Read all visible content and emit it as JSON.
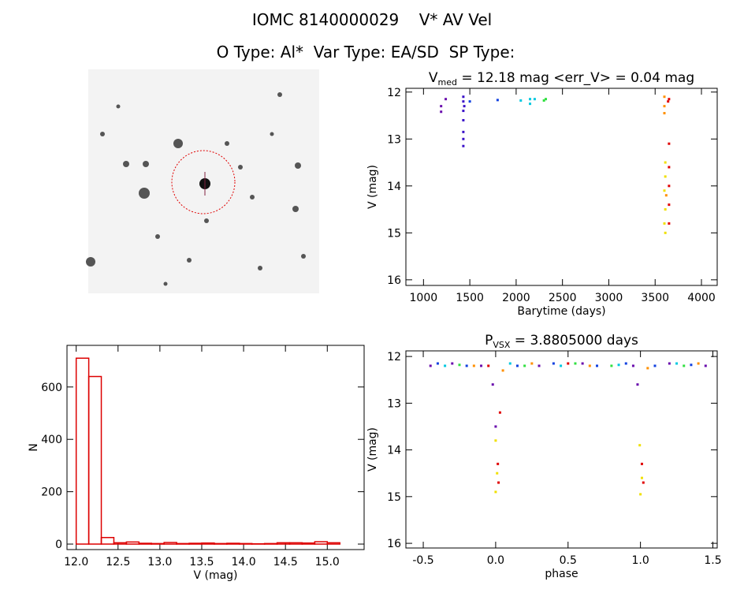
{
  "header": {
    "title": "IOMC 8140000029    V* AV Vel",
    "subtitle": "O Type: Al*  Var Type: EA/SD  SP Type:"
  },
  "chart_data": [
    {
      "type": "scatter",
      "title": "V",
      "title_sub": "med",
      "title_rest": " = 12.18 mag <err_V> = 0.04 mag",
      "x_label": "Barytime (days)",
      "y_label": "V (mag)",
      "xlim": [
        810,
        4170
      ],
      "xticks": [
        1000,
        1500,
        2000,
        2500,
        3000,
        3500,
        4000
      ],
      "ylim": [
        16.12,
        11.92
      ],
      "yticks": [
        12,
        13,
        14,
        15,
        16
      ],
      "series": [
        {
          "color": "#6a0dad",
          "x": [
            1190,
            1190,
            1240
          ],
          "values": [
            12.3,
            12.42,
            12.15
          ]
        },
        {
          "color": "#3a10c8",
          "x": [
            1430,
            1430,
            1430,
            1430,
            1430,
            1430,
            1430,
            1440
          ],
          "values": [
            12.1,
            12.2,
            12.4,
            12.6,
            12.85,
            13.0,
            13.15,
            12.3
          ]
        },
        {
          "color": "#1040e0",
          "x": [
            1500,
            1800
          ],
          "values": [
            12.2,
            12.17
          ]
        },
        {
          "color": "#00c8e0",
          "x": [
            2050,
            2150,
            2150,
            2200
          ],
          "values": [
            12.18,
            12.15,
            12.25,
            12.15
          ]
        },
        {
          "color": "#30e040",
          "x": [
            2300,
            2320
          ],
          "values": [
            12.18,
            12.15
          ]
        },
        {
          "color": "#ff9000",
          "x": [
            3600,
            3600,
            3600,
            3620
          ],
          "values": [
            12.1,
            12.3,
            12.45,
            14.2
          ]
        },
        {
          "color": "#f0e000",
          "x": [
            3610,
            3610,
            3600,
            3610,
            3600,
            3610
          ],
          "values": [
            13.5,
            13.8,
            14.1,
            14.5,
            14.8,
            15.0
          ]
        },
        {
          "color": "#e00000",
          "x": [
            3650,
            3650,
            3650,
            3650,
            3650,
            3650,
            3640
          ],
          "values": [
            12.15,
            13.1,
            13.6,
            14.0,
            14.4,
            14.8,
            12.2
          ]
        }
      ]
    },
    {
      "type": "histogram",
      "x_label": "V (mag)",
      "y_label": "N",
      "color": "#dd0000",
      "bins": [
        12.0,
        12.15,
        12.3,
        12.45,
        12.6,
        12.75,
        12.9,
        13.05,
        13.2,
        13.35,
        13.5,
        13.65,
        13.8,
        13.95,
        14.1,
        14.25,
        14.4,
        14.55,
        14.7,
        14.85,
        15.0,
        15.15
      ],
      "values": [
        710,
        640,
        25,
        5,
        8,
        3,
        2,
        6,
        2,
        3,
        4,
        2,
        3,
        2,
        1,
        2,
        5,
        5,
        4,
        9,
        5
      ],
      "xlim": [
        11.89,
        15.44
      ],
      "xticks": [
        {
          "value": 12,
          "label": "12.0"
        },
        12.5,
        {
          "value": 13,
          "label": "13.0"
        },
        13.5,
        {
          "value": 14,
          "label": "14.0"
        },
        14.5,
        {
          "value": 15,
          "label": "15.0"
        }
      ],
      "ylim": [
        -21,
        759
      ],
      "yticks": [
        0,
        200,
        400,
        600
      ]
    },
    {
      "type": "scatter",
      "title": "P",
      "title_sub": "VSX",
      "title_rest": " = 3.8805000 days",
      "x_label": "phase",
      "y_label": "V (mag)",
      "xlim": [
        -0.62,
        1.53
      ],
      "xticks": [
        -0.5,
        {
          "value": 0,
          "label": "0.0"
        },
        0.5,
        {
          "value": 1,
          "label": "1.0"
        },
        1.5
      ],
      "ylim": [
        16.1,
        11.88
      ],
      "yticks": [
        12,
        13,
        14,
        15,
        16
      ],
      "series": [
        {
          "color": "#6a0dad",
          "x": [
            -0.45,
            -0.3,
            -0.1,
            -0.02,
            0.0,
            0.3,
            0.6,
            0.95,
            0.98,
            1.2,
            1.45
          ],
          "values": [
            12.2,
            12.15,
            12.2,
            12.6,
            13.5,
            12.2,
            12.15,
            12.2,
            12.6,
            12.15,
            12.2
          ]
        },
        {
          "color": "#1040e0",
          "x": [
            -0.4,
            -0.2,
            0.15,
            0.4,
            0.7,
            0.9,
            1.1,
            1.35
          ],
          "values": [
            12.15,
            12.2,
            12.2,
            12.15,
            12.2,
            12.15,
            12.2,
            12.18
          ]
        },
        {
          "color": "#00c8e0",
          "x": [
            -0.35,
            0.1,
            0.45,
            0.85,
            1.25
          ],
          "values": [
            12.2,
            12.15,
            12.2,
            12.18,
            12.15
          ]
        },
        {
          "color": "#30e040",
          "x": [
            -0.25,
            0.2,
            0.55,
            0.8,
            1.3
          ],
          "values": [
            12.18,
            12.2,
            12.15,
            12.2,
            12.2
          ]
        },
        {
          "color": "#ff9000",
          "x": [
            -0.15,
            0.05,
            0.25,
            0.65,
            1.05,
            1.4
          ],
          "values": [
            12.2,
            12.3,
            12.15,
            12.2,
            12.25,
            12.15
          ]
        },
        {
          "color": "#f0e000",
          "x": [
            0.0,
            0.01,
            0.0,
            1.0,
            1.01,
            0.995
          ],
          "values": [
            14.9,
            14.5,
            13.8,
            14.95,
            14.6,
            13.9
          ]
        },
        {
          "color": "#e00000",
          "x": [
            0.02,
            0.015,
            0.03,
            1.02,
            1.01,
            0.5,
            -0.05
          ],
          "values": [
            14.7,
            14.3,
            13.2,
            14.7,
            14.3,
            12.15,
            12.2
          ]
        }
      ]
    }
  ]
}
